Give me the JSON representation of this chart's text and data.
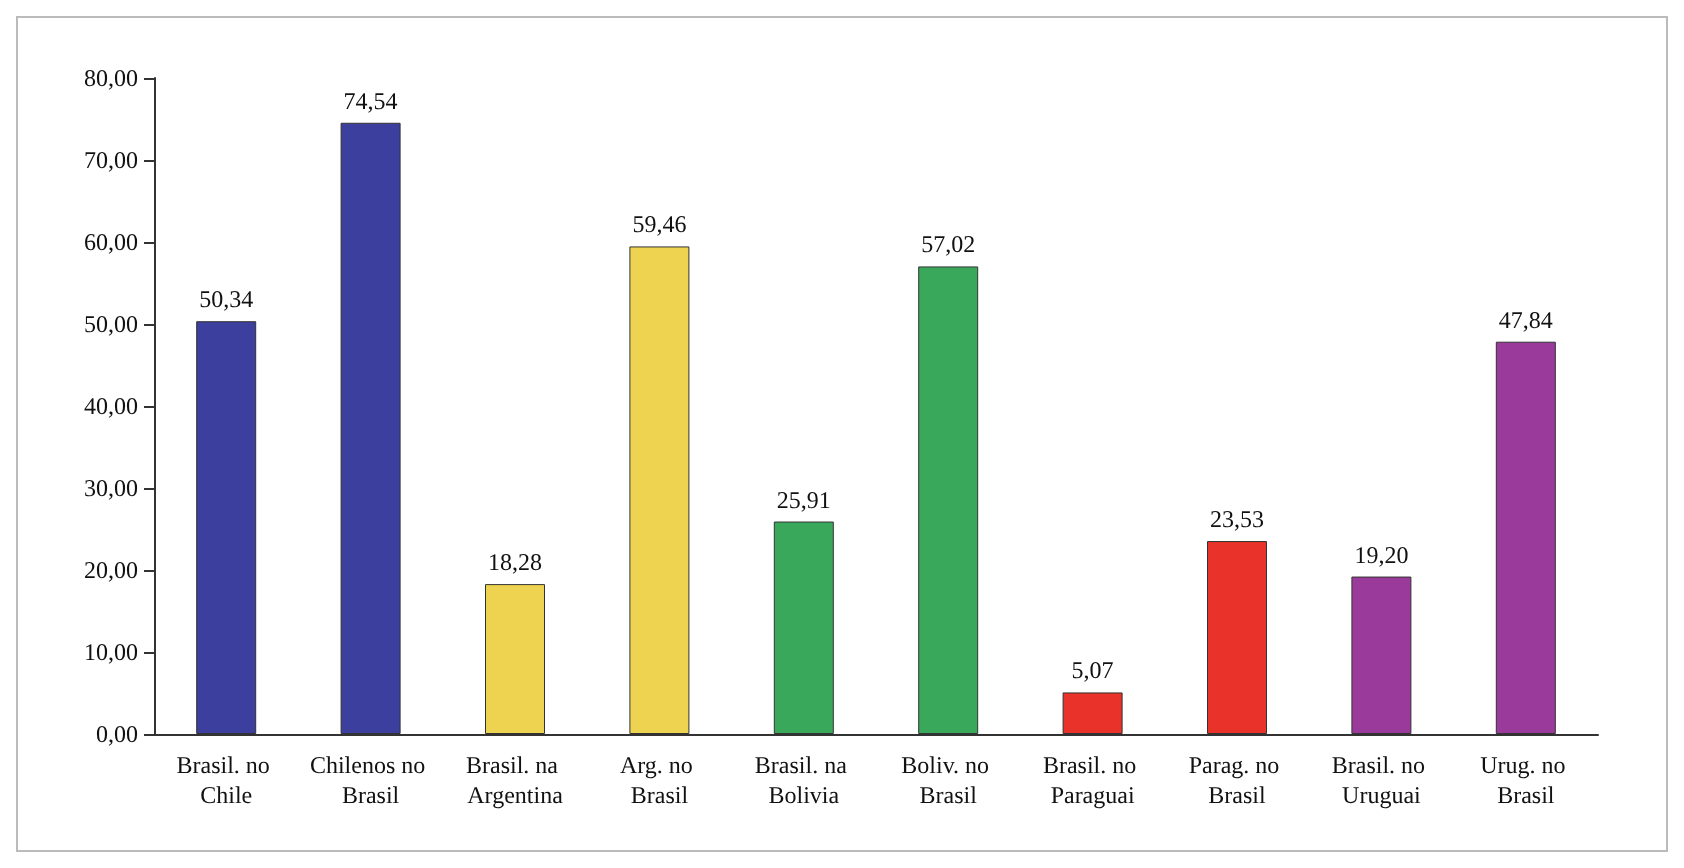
{
  "chart_data": {
    "type": "bar",
    "categories": [
      "Brasil. no Chile",
      "Chilenos no Brasil",
      "Brasil. na Argentina",
      "Arg. no Brasil",
      "Brasil. na Bolivia",
      "Boliv. no Brasil",
      "Brasil. no Paraguai",
      "Parag. no Brasil",
      "Brasil. no Uruguai",
      "Urug. no Brasil"
    ],
    "values": [
      50.34,
      74.54,
      18.28,
      59.46,
      25.91,
      57.02,
      5.07,
      23.53,
      19.2,
      47.84
    ],
    "value_labels": [
      "50,34",
      "74,54",
      "18,28",
      "59,46",
      "25,91",
      "57,02",
      "5,07",
      "23,53",
      "19,20",
      "47,84"
    ],
    "colors": [
      "#3c3f9e",
      "#3c3f9e",
      "#eed350",
      "#eed350",
      "#3aa85a",
      "#3aa85a",
      "#e8322a",
      "#e8322a",
      "#9a3a9a",
      "#9a3a9a"
    ],
    "ylim": [
      0,
      80
    ],
    "yticks": [
      {
        "value": 0,
        "label": "0,00"
      },
      {
        "value": 10,
        "label": "10,00"
      },
      {
        "value": 20,
        "label": "20,00"
      },
      {
        "value": 30,
        "label": "30,00"
      },
      {
        "value": 40,
        "label": "40,00"
      },
      {
        "value": 50,
        "label": "50,00"
      },
      {
        "value": 60,
        "label": "60,00"
      },
      {
        "value": 70,
        "label": "70,00"
      },
      {
        "value": 80,
        "label": "80,00"
      }
    ],
    "grid": false
  }
}
